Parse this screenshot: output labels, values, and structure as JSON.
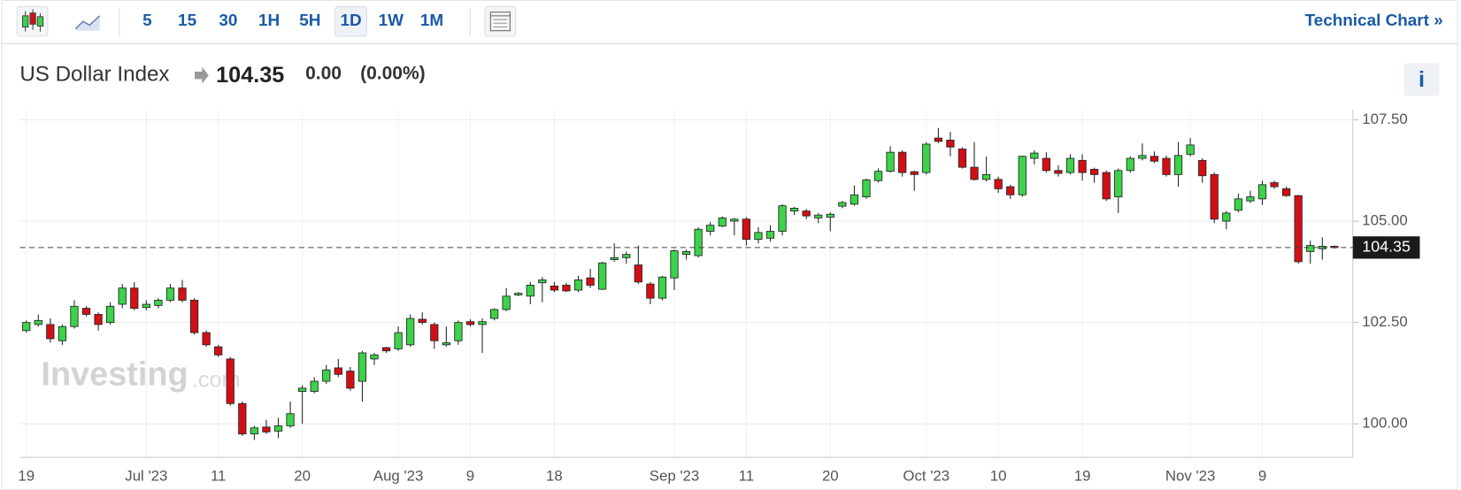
{
  "header": {
    "intervals": [
      "5",
      "15",
      "30",
      "1H",
      "5H",
      "1D",
      "1W",
      "1M"
    ],
    "link": "Technical Chart »",
    "instrument": "US Dollar Index",
    "price": "104.35",
    "change": "0.00",
    "change_percent": "(0.00%)",
    "info": "i",
    "watermark": "Investing",
    "watermark_suffix": ".com"
  },
  "chart_data": {
    "type": "candlestick",
    "up_color": "#3cd24a",
    "down_color": "#d30f16",
    "grid": true,
    "ylim": [
      99.17,
      107.75
    ],
    "yticks": [
      {
        "value": 100,
        "label": "100.00"
      },
      {
        "value": 102.5,
        "label": "102.50"
      },
      {
        "value": 105,
        "label": "105.00"
      },
      {
        "value": 107.5,
        "label": "107.50"
      }
    ],
    "categories": [
      "19",
      null,
      null,
      null,
      null,
      null,
      null,
      null,
      null,
      null,
      "Jul '23",
      null,
      null,
      null,
      null,
      null,
      "11",
      null,
      null,
      null,
      null,
      null,
      null,
      "20",
      null,
      null,
      null,
      null,
      null,
      null,
      null,
      "Aug '23",
      null,
      null,
      null,
      null,
      null,
      "9",
      null,
      null,
      null,
      null,
      null,
      null,
      "18",
      null,
      null,
      null,
      null,
      null,
      null,
      null,
      null,
      null,
      "Sep '23",
      null,
      null,
      null,
      null,
      null,
      "11",
      null,
      null,
      null,
      null,
      null,
      null,
      "20",
      null,
      null,
      null,
      null,
      null,
      null,
      null,
      "Oct '23",
      null,
      null,
      null,
      null,
      null,
      "10",
      null,
      null,
      null,
      null,
      null,
      null,
      "19",
      null,
      null,
      null,
      null,
      null,
      null,
      null,
      null,
      "Nov '23",
      null,
      null,
      null,
      null,
      null,
      "9",
      null,
      null,
      null,
      null,
      null,
      null
    ],
    "open": [
      102.3,
      102.45,
      102.45,
      102.05,
      102.4,
      102.85,
      102.7,
      102.5,
      102.95,
      103.35,
      102.87,
      102.92,
      103.05,
      103.35,
      103.05,
      102.25,
      101.9,
      101.6,
      100.5,
      99.75,
      99.92,
      99.82,
      99.95,
      100.8,
      100.8,
      101.05,
      101.38,
      101.3,
      101.05,
      101.6,
      101.88,
      101.85,
      101.95,
      102.58,
      102.45,
      101.95,
      102.05,
      102.52,
      102.45,
      102.6,
      102.82,
      103.18,
      103.15,
      103.48,
      103.4,
      103.42,
      103.3,
      103.6,
      103.32,
      104.05,
      104.1,
      103.92,
      103.45,
      103.1,
      103.6,
      104.18,
      104.15,
      104.75,
      104.88,
      105.0,
      105.05,
      104.55,
      104.58,
      104.75,
      105.25,
      105.25,
      105.08,
      105.1,
      105.37,
      105.42,
      105.6,
      106.0,
      106.23,
      106.7,
      106.22,
      106.2,
      107.05,
      107.0,
      106.78,
      106.33,
      106.03,
      106.03,
      105.85,
      105.65,
      106.55,
      106.55,
      106.25,
      106.2,
      106.5,
      106.28,
      106.2,
      105.6,
      106.25,
      106.55,
      106.6,
      106.55,
      106.15,
      106.65,
      106.5,
      106.15,
      105.0,
      105.27,
      105.5,
      105.55,
      105.95,
      105.8,
      105.63,
      104.25,
      104.32,
      104.38
    ],
    "high": [
      102.55,
      102.7,
      102.6,
      102.45,
      103.05,
      102.9,
      102.75,
      103.0,
      103.45,
      103.5,
      103.05,
      103.1,
      103.45,
      103.55,
      103.1,
      102.3,
      101.95,
      101.65,
      100.55,
      99.95,
      100.1,
      100.15,
      100.55,
      100.95,
      101.15,
      101.45,
      101.6,
      101.4,
      101.8,
      101.75,
      101.9,
      102.4,
      102.7,
      102.75,
      102.5,
      102.4,
      102.55,
      102.58,
      102.6,
      102.85,
      103.35,
      103.25,
      103.5,
      103.62,
      103.5,
      103.48,
      103.65,
      103.82,
      104.0,
      104.45,
      104.25,
      104.4,
      103.5,
      103.65,
      104.3,
      104.3,
      104.85,
      104.98,
      105.12,
      105.08,
      105.1,
      104.85,
      104.9,
      105.42,
      105.35,
      105.3,
      105.2,
      105.22,
      105.5,
      105.88,
      106.05,
      106.3,
      106.85,
      106.75,
      106.25,
      106.95,
      107.3,
      107.2,
      106.82,
      106.95,
      106.6,
      106.1,
      105.9,
      106.62,
      106.75,
      106.7,
      106.38,
      106.65,
      106.65,
      106.32,
      106.25,
      106.3,
      106.6,
      106.92,
      106.72,
      106.62,
      106.95,
      107.05,
      106.55,
      106.2,
      105.25,
      105.68,
      105.75,
      106.0,
      106.0,
      105.85,
      105.65,
      104.52,
      104.6,
      104.4
    ],
    "low": [
      102.25,
      102.4,
      102.0,
      101.95,
      102.35,
      102.65,
      102.3,
      102.45,
      102.85,
      102.8,
      102.8,
      102.85,
      103.0,
      103.0,
      102.2,
      101.9,
      101.65,
      100.45,
      99.7,
      99.6,
      99.75,
      99.65,
      99.9,
      100.0,
      100.75,
      100.98,
      101.15,
      100.82,
      100.55,
      101.45,
      101.75,
      101.8,
      101.9,
      102.45,
      101.85,
      101.9,
      101.95,
      102.4,
      101.75,
      102.55,
      102.78,
      103.15,
      102.95,
      103.0,
      103.25,
      103.25,
      103.25,
      103.35,
      103.3,
      104.0,
      103.95,
      103.45,
      102.95,
      103.05,
      103.3,
      104.05,
      104.1,
      104.65,
      104.85,
      104.65,
      104.4,
      104.45,
      104.5,
      104.65,
      105.15,
      105.05,
      104.95,
      104.75,
      105.32,
      105.38,
      105.55,
      105.95,
      106.2,
      106.1,
      105.75,
      106.15,
      106.92,
      106.6,
      106.3,
      106.0,
      105.98,
      105.7,
      105.55,
      105.6,
      106.4,
      106.2,
      106.1,
      106.15,
      106.0,
      105.95,
      105.5,
      105.2,
      106.2,
      106.5,
      106.43,
      106.1,
      105.85,
      106.6,
      105.95,
      104.95,
      104.8,
      105.22,
      105.45,
      105.4,
      105.8,
      105.6,
      103.95,
      103.95,
      104.05,
      104.32
    ],
    "close": [
      102.5,
      102.55,
      102.1,
      102.4,
      102.9,
      102.7,
      102.45,
      102.9,
      103.35,
      102.85,
      102.95,
      103.05,
      103.35,
      103.05,
      102.25,
      101.95,
      101.7,
      100.5,
      99.75,
      99.9,
      99.8,
      99.95,
      100.25,
      100.88,
      101.05,
      101.33,
      101.22,
      100.88,
      101.75,
      101.7,
      101.8,
      102.25,
      102.6,
      102.5,
      102.05,
      102.0,
      102.5,
      102.45,
      102.52,
      102.82,
      103.15,
      103.22,
      103.42,
      103.55,
      103.3,
      103.28,
      103.55,
      103.42,
      103.97,
      104.1,
      104.18,
      103.5,
      103.1,
      103.62,
      104.27,
      104.25,
      104.8,
      104.9,
      105.08,
      105.05,
      104.55,
      104.72,
      104.75,
      105.38,
      105.32,
      105.13,
      105.15,
      105.17,
      105.46,
      105.65,
      106.02,
      106.23,
      106.7,
      106.2,
      106.15,
      106.9,
      106.97,
      106.83,
      106.33,
      106.03,
      106.15,
      105.8,
      105.65,
      106.6,
      106.68,
      106.25,
      106.18,
      106.55,
      106.2,
      106.15,
      105.55,
      106.25,
      106.55,
      106.62,
      106.48,
      106.15,
      106.62,
      106.88,
      106.12,
      105.05,
      105.2,
      105.55,
      105.6,
      105.9,
      105.85,
      105.63,
      104.0,
      104.4,
      104.38,
      104.35
    ]
  }
}
